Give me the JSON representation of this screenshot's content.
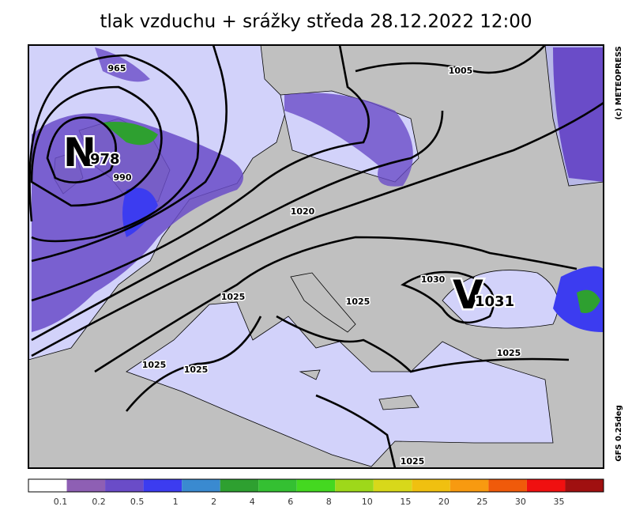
{
  "header": {
    "title": "tlak vzduchu + srážky  středa 28.12.2022 12:00"
  },
  "map": {
    "low": {
      "letter": "N",
      "value": 978
    },
    "high": {
      "letter": "V",
      "value": 1031
    },
    "isobar_labels": [
      965,
      990,
      1005,
      1020,
      1025,
      1025,
      1025,
      1025,
      1030,
      1025,
      1025
    ],
    "credit": "(c) METEOPRESS",
    "model": "GFS 0.25deg"
  },
  "colorbar": {
    "colors": [
      "#ffffff",
      "#8e5fb4",
      "#6a4cc8",
      "#3c3cf0",
      "#3a8ad0",
      "#2ea030",
      "#34c032",
      "#44d820",
      "#9ed81a",
      "#d8d81a",
      "#f0c010",
      "#f89a10",
      "#f05a0a",
      "#f01010",
      "#a01010"
    ],
    "levels": [
      0.1,
      0.2,
      0.5,
      1,
      2,
      4,
      6,
      8,
      10,
      15,
      20,
      25,
      30,
      35
    ]
  }
}
